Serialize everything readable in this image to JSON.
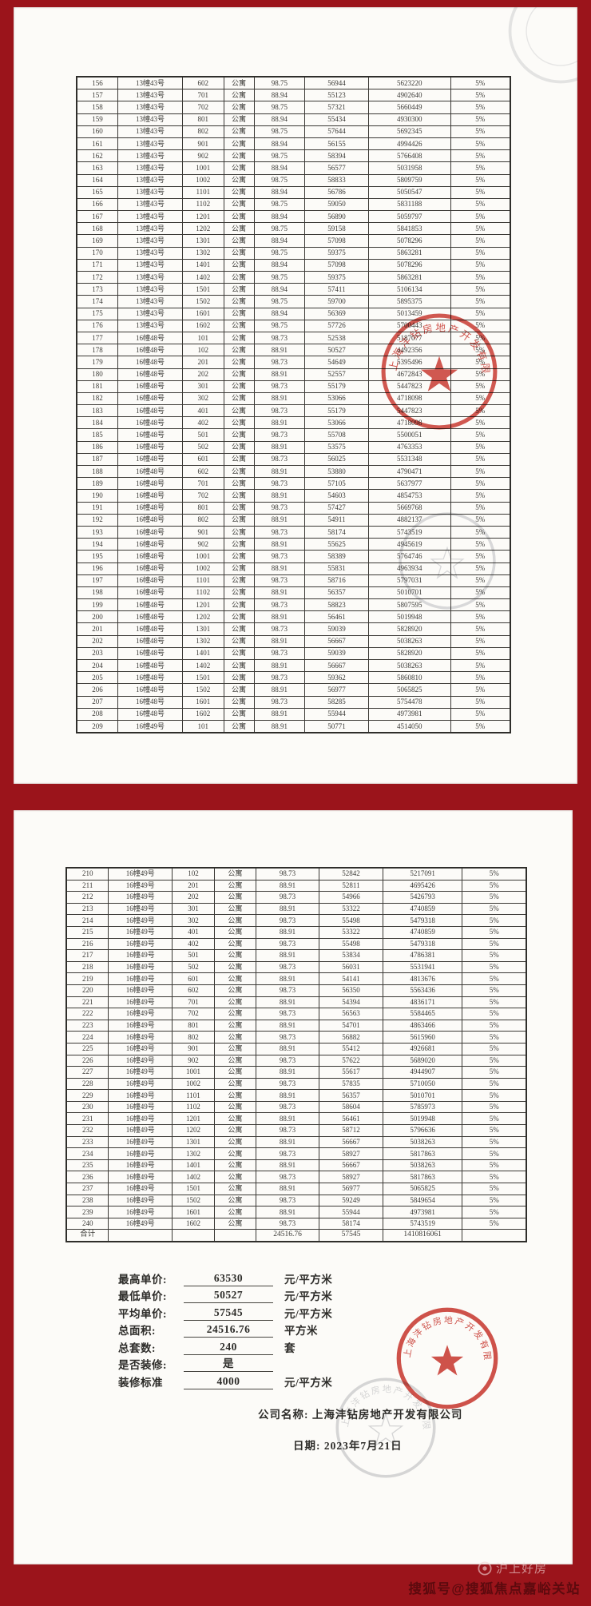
{
  "page1": {
    "rate": "5%",
    "rows": [
      [
        "156",
        "13幢43号",
        "602",
        "公寓",
        "98.75",
        "56944",
        "5623220"
      ],
      [
        "157",
        "13幢43号",
        "701",
        "公寓",
        "88.94",
        "55123",
        "4902640"
      ],
      [
        "158",
        "13幢43号",
        "702",
        "公寓",
        "98.75",
        "57321",
        "5660449"
      ],
      [
        "159",
        "13幢43号",
        "801",
        "公寓",
        "88.94",
        "55434",
        "4930300"
      ],
      [
        "160",
        "13幢43号",
        "802",
        "公寓",
        "98.75",
        "57644",
        "5692345"
      ],
      [
        "161",
        "13幢43号",
        "901",
        "公寓",
        "88.94",
        "56155",
        "4994426"
      ],
      [
        "162",
        "13幢43号",
        "902",
        "公寓",
        "98.75",
        "58394",
        "5766408"
      ],
      [
        "163",
        "13幢43号",
        "1001",
        "公寓",
        "88.94",
        "56577",
        "5031958"
      ],
      [
        "164",
        "13幢43号",
        "1002",
        "公寓",
        "98.75",
        "58833",
        "5809759"
      ],
      [
        "165",
        "13幢43号",
        "1101",
        "公寓",
        "88.94",
        "56786",
        "5050547"
      ],
      [
        "166",
        "13幢43号",
        "1102",
        "公寓",
        "98.75",
        "59050",
        "5831188"
      ],
      [
        "167",
        "13幢43号",
        "1201",
        "公寓",
        "88.94",
        "56890",
        "5059797"
      ],
      [
        "168",
        "13幢43号",
        "1202",
        "公寓",
        "98.75",
        "59158",
        "5841853"
      ],
      [
        "169",
        "13幢43号",
        "1301",
        "公寓",
        "88.94",
        "57098",
        "5078296"
      ],
      [
        "170",
        "13幢43号",
        "1302",
        "公寓",
        "98.75",
        "59375",
        "5863281"
      ],
      [
        "171",
        "13幢43号",
        "1401",
        "公寓",
        "88.94",
        "57098",
        "5078296"
      ],
      [
        "172",
        "13幢43号",
        "1402",
        "公寓",
        "98.75",
        "59375",
        "5863281"
      ],
      [
        "173",
        "13幢43号",
        "1501",
        "公寓",
        "88.94",
        "57411",
        "5106134"
      ],
      [
        "174",
        "13幢43号",
        "1502",
        "公寓",
        "98.75",
        "59700",
        "5895375"
      ],
      [
        "175",
        "13幢43号",
        "1601",
        "公寓",
        "88.94",
        "56369",
        "5013459"
      ],
      [
        "176",
        "13幢43号",
        "1602",
        "公寓",
        "98.75",
        "57726",
        "5700443"
      ],
      [
        "177",
        "16幢48号",
        "101",
        "公寓",
        "98.73",
        "52538",
        "5187077"
      ],
      [
        "178",
        "16幢48号",
        "102",
        "公寓",
        "88.91",
        "50527",
        "4492356"
      ],
      [
        "179",
        "16幢48号",
        "201",
        "公寓",
        "98.73",
        "54649",
        "5395496"
      ],
      [
        "180",
        "16幢48号",
        "202",
        "公寓",
        "88.91",
        "52557",
        "4672843"
      ],
      [
        "181",
        "16幢48号",
        "301",
        "公寓",
        "98.73",
        "55179",
        "5447823"
      ],
      [
        "182",
        "16幢48号",
        "302",
        "公寓",
        "88.91",
        "53066",
        "4718098"
      ],
      [
        "183",
        "16幢48号",
        "401",
        "公寓",
        "98.73",
        "55179",
        "5447823"
      ],
      [
        "184",
        "16幢48号",
        "402",
        "公寓",
        "88.91",
        "53066",
        "4718098"
      ],
      [
        "185",
        "16幢48号",
        "501",
        "公寓",
        "98.73",
        "55708",
        "5500051"
      ],
      [
        "186",
        "16幢48号",
        "502",
        "公寓",
        "88.91",
        "53575",
        "4763353"
      ],
      [
        "187",
        "16幢48号",
        "601",
        "公寓",
        "98.73",
        "56025",
        "5531348"
      ],
      [
        "188",
        "16幢48号",
        "602",
        "公寓",
        "88.91",
        "53880",
        "4790471"
      ],
      [
        "189",
        "16幢48号",
        "701",
        "公寓",
        "98.73",
        "57105",
        "5637977"
      ],
      [
        "190",
        "16幢48号",
        "702",
        "公寓",
        "88.91",
        "54603",
        "4854753"
      ],
      [
        "191",
        "16幢48号",
        "801",
        "公寓",
        "98.73",
        "57427",
        "5669768"
      ],
      [
        "192",
        "16幢48号",
        "802",
        "公寓",
        "88.91",
        "54911",
        "4882137"
      ],
      [
        "193",
        "16幢48号",
        "901",
        "公寓",
        "98.73",
        "58174",
        "5743519"
      ],
      [
        "194",
        "16幢48号",
        "902",
        "公寓",
        "88.91",
        "55625",
        "4945619"
      ],
      [
        "195",
        "16幢48号",
        "1001",
        "公寓",
        "98.73",
        "58389",
        "5764746"
      ],
      [
        "196",
        "16幢48号",
        "1002",
        "公寓",
        "88.91",
        "55831",
        "4963934"
      ],
      [
        "197",
        "16幢48号",
        "1101",
        "公寓",
        "98.73",
        "58716",
        "5797031"
      ],
      [
        "198",
        "16幢48号",
        "1102",
        "公寓",
        "88.91",
        "56357",
        "5010701"
      ],
      [
        "199",
        "16幢48号",
        "1201",
        "公寓",
        "98.73",
        "58823",
        "5807595"
      ],
      [
        "200",
        "16幢48号",
        "1202",
        "公寓",
        "88.91",
        "56461",
        "5019948"
      ],
      [
        "201",
        "16幢48号",
        "1301",
        "公寓",
        "98.73",
        "59039",
        "5828920"
      ],
      [
        "202",
        "16幢48号",
        "1302",
        "公寓",
        "88.91",
        "56667",
        "5038263"
      ],
      [
        "203",
        "16幢48号",
        "1401",
        "公寓",
        "98.73",
        "59039",
        "5828920"
      ],
      [
        "204",
        "16幢48号",
        "1402",
        "公寓",
        "88.91",
        "56667",
        "5038263"
      ],
      [
        "205",
        "16幢48号",
        "1501",
        "公寓",
        "98.73",
        "59362",
        "5860810"
      ],
      [
        "206",
        "16幢48号",
        "1502",
        "公寓",
        "88.91",
        "56977",
        "5065825"
      ],
      [
        "207",
        "16幢48号",
        "1601",
        "公寓",
        "98.73",
        "58285",
        "5754478"
      ],
      [
        "208",
        "16幢48号",
        "1602",
        "公寓",
        "88.91",
        "55944",
        "4973981"
      ],
      [
        "209",
        "16幢49号",
        "101",
        "公寓",
        "88.91",
        "50771",
        "4514050"
      ]
    ]
  },
  "page2": {
    "rate": "5%",
    "rows": [
      [
        "210",
        "16幢49号",
        "102",
        "公寓",
        "98.73",
        "52842",
        "5217091"
      ],
      [
        "211",
        "16幢49号",
        "201",
        "公寓",
        "88.91",
        "52811",
        "4695426"
      ],
      [
        "212",
        "16幢49号",
        "202",
        "公寓",
        "98.73",
        "54966",
        "5426793"
      ],
      [
        "213",
        "16幢49号",
        "301",
        "公寓",
        "88.91",
        "53322",
        "4740859"
      ],
      [
        "214",
        "16幢49号",
        "302",
        "公寓",
        "98.73",
        "55498",
        "5479318"
      ],
      [
        "215",
        "16幢49号",
        "401",
        "公寓",
        "88.91",
        "53322",
        "4740859"
      ],
      [
        "216",
        "16幢49号",
        "402",
        "公寓",
        "98.73",
        "55498",
        "5479318"
      ],
      [
        "217",
        "16幢49号",
        "501",
        "公寓",
        "88.91",
        "53834",
        "4786381"
      ],
      [
        "218",
        "16幢49号",
        "502",
        "公寓",
        "98.73",
        "56031",
        "5531941"
      ],
      [
        "219",
        "16幢49号",
        "601",
        "公寓",
        "88.91",
        "54141",
        "4813676"
      ],
      [
        "220",
        "16幢49号",
        "602",
        "公寓",
        "98.73",
        "56350",
        "5563436"
      ],
      [
        "221",
        "16幢49号",
        "701",
        "公寓",
        "88.91",
        "54394",
        "4836171"
      ],
      [
        "222",
        "16幢49号",
        "702",
        "公寓",
        "98.73",
        "56563",
        "5584465"
      ],
      [
        "223",
        "16幢49号",
        "801",
        "公寓",
        "88.91",
        "54701",
        "4863466"
      ],
      [
        "224",
        "16幢49号",
        "802",
        "公寓",
        "98.73",
        "56882",
        "5615960"
      ],
      [
        "225",
        "16幢49号",
        "901",
        "公寓",
        "88.91",
        "55412",
        "4926681"
      ],
      [
        "226",
        "16幢49号",
        "902",
        "公寓",
        "98.73",
        "57622",
        "5689020"
      ],
      [
        "227",
        "16幢49号",
        "1001",
        "公寓",
        "88.91",
        "55617",
        "4944907"
      ],
      [
        "228",
        "16幢49号",
        "1002",
        "公寓",
        "98.73",
        "57835",
        "5710050"
      ],
      [
        "229",
        "16幢49号",
        "1101",
        "公寓",
        "88.91",
        "56357",
        "5010701"
      ],
      [
        "230",
        "16幢49号",
        "1102",
        "公寓",
        "98.73",
        "58604",
        "5785973"
      ],
      [
        "231",
        "16幢49号",
        "1201",
        "公寓",
        "88.91",
        "56461",
        "5019948"
      ],
      [
        "232",
        "16幢49号",
        "1202",
        "公寓",
        "98.73",
        "58712",
        "5796636"
      ],
      [
        "233",
        "16幢49号",
        "1301",
        "公寓",
        "88.91",
        "56667",
        "5038263"
      ],
      [
        "234",
        "16幢49号",
        "1302",
        "公寓",
        "98.73",
        "58927",
        "5817863"
      ],
      [
        "235",
        "16幢49号",
        "1401",
        "公寓",
        "88.91",
        "56667",
        "5038263"
      ],
      [
        "236",
        "16幢49号",
        "1402",
        "公寓",
        "98.73",
        "58927",
        "5817863"
      ],
      [
        "237",
        "16幢49号",
        "1501",
        "公寓",
        "88.91",
        "56977",
        "5065825"
      ],
      [
        "238",
        "16幢49号",
        "1502",
        "公寓",
        "98.73",
        "59249",
        "5849654"
      ],
      [
        "239",
        "16幢49号",
        "1601",
        "公寓",
        "88.91",
        "55944",
        "4973981"
      ],
      [
        "240",
        "16幢49号",
        "1602",
        "公寓",
        "98.73",
        "58174",
        "5743519"
      ]
    ],
    "total": {
      "label": "合计",
      "area": "24516.76",
      "unit_price": "57545",
      "total_price": "1410816061"
    },
    "summary": [
      {
        "label": "最高单价:",
        "value": "63530",
        "unit": "元/平方米"
      },
      {
        "label": "最低单价:",
        "value": "50527",
        "unit": "元/平方米"
      },
      {
        "label": "平均单价:",
        "value": "57545",
        "unit": "元/平方米"
      },
      {
        "label": "总面积:",
        "value": "24516.76",
        "unit": "平方米"
      },
      {
        "label": "总套数:",
        "value": "240",
        "unit": "套"
      },
      {
        "label": "是否装修:",
        "value": "是",
        "unit": ""
      },
      {
        "label": "装修标准",
        "value": "4000",
        "unit": "元/平方米"
      }
    ],
    "company_label": "公司名称:",
    "company_name": "上海沣钻房地产开发有限公司",
    "date_label": "日期:",
    "date_value": "2023年7月21日"
  },
  "stamps": {
    "company_arc": "上海沣钻房地产开发有限公司"
  },
  "footer": {
    "watermark": "沪上好房",
    "credit": "搜狐号@搜狐焦点嘉峪关站"
  },
  "colors": {
    "background_red": "#9b141b",
    "stamp_red": "#c9342c",
    "credit_text": "#5c0a0e"
  }
}
